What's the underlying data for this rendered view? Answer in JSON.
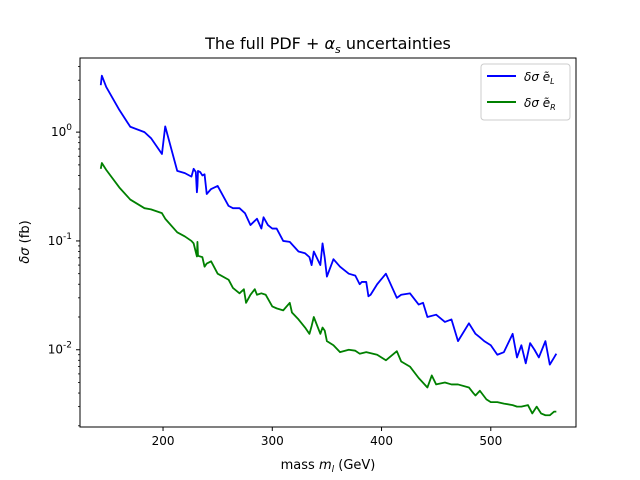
{
  "chart_data": {
    "type": "line",
    "title": "The full PDF + α_s uncertainties",
    "xlabel": "mass m_l (GeV)",
    "ylabel": "δσ (fb)",
    "xlim": [
      124,
      578
    ],
    "ylim": [
      0.00195,
      4.8
    ],
    "yscale": "log",
    "xticks": [
      200,
      300,
      400,
      500
    ],
    "yticks": [
      0.01,
      0.1,
      1
    ],
    "ytick_labels": [
      "10^-2",
      "10^-1",
      "10^0"
    ],
    "legend_position": "top-right",
    "grid": false,
    "series": [
      {
        "name": "δσ ẽ_L",
        "color": "#0000ff",
        "x": [
          143,
          144,
          148,
          160,
          170,
          183,
          189,
          199,
          202,
          213,
          220,
          226,
          228,
          230,
          231,
          231.5,
          232,
          234,
          236,
          238,
          240,
          244,
          250,
          260,
          264,
          270,
          275,
          280,
          286,
          290,
          292,
          296,
          300,
          304,
          310,
          316,
          324,
          330,
          334,
          336,
          338,
          344,
          346,
          348,
          350,
          356,
          362,
          370,
          376,
          380,
          382,
          386,
          388,
          390,
          396,
          404,
          414,
          418,
          426,
          434,
          438,
          442,
          450,
          458,
          464,
          470,
          480,
          486,
          490,
          494,
          500,
          506,
          512,
          520,
          524,
          528,
          532,
          536,
          540,
          544,
          550,
          554,
          558,
          560
        ],
        "y": [
          2.7,
          3.3,
          2.6,
          1.6,
          1.12,
          1.0,
          0.88,
          0.63,
          1.13,
          0.44,
          0.42,
          0.39,
          0.46,
          0.43,
          0.28,
          0.32,
          0.44,
          0.43,
          0.4,
          0.41,
          0.27,
          0.3,
          0.32,
          0.21,
          0.2,
          0.2,
          0.18,
          0.14,
          0.16,
          0.13,
          0.165,
          0.14,
          0.13,
          0.13,
          0.1,
          0.098,
          0.08,
          0.077,
          0.071,
          0.06,
          0.08,
          0.06,
          0.095,
          0.07,
          0.047,
          0.068,
          0.058,
          0.05,
          0.048,
          0.04,
          0.042,
          0.042,
          0.031,
          0.032,
          0.04,
          0.05,
          0.03,
          0.032,
          0.033,
          0.026,
          0.027,
          0.02,
          0.021,
          0.018,
          0.019,
          0.012,
          0.0175,
          0.014,
          0.013,
          0.012,
          0.011,
          0.009,
          0.0095,
          0.014,
          0.0085,
          0.011,
          0.0075,
          0.0115,
          0.01,
          0.0085,
          0.012,
          0.0073,
          0.0085,
          0.0092
        ]
      },
      {
        "name": "δσ ẽ_R",
        "color": "#008000",
        "x": [
          143,
          144,
          148,
          160,
          170,
          183,
          189,
          199,
          202,
          213,
          220,
          226,
          228,
          231,
          231.5,
          232,
          236,
          238,
          240,
          244,
          250,
          260,
          264,
          270,
          274,
          276,
          280,
          284,
          286,
          290,
          294,
          300,
          304,
          310,
          316,
          318,
          324,
          330,
          334,
          336,
          338,
          344,
          346,
          348,
          350,
          356,
          362,
          370,
          376,
          380,
          386,
          396,
          404,
          414,
          418,
          426,
          434,
          442,
          446,
          450,
          458,
          464,
          470,
          480,
          484,
          486,
          490,
          496,
          500,
          506,
          512,
          520,
          524,
          528,
          534,
          538,
          542,
          546,
          550,
          554,
          558,
          560
        ],
        "y": [
          0.46,
          0.52,
          0.45,
          0.31,
          0.24,
          0.2,
          0.195,
          0.18,
          0.16,
          0.12,
          0.11,
          0.1,
          0.095,
          0.072,
          0.098,
          0.073,
          0.071,
          0.058,
          0.062,
          0.065,
          0.05,
          0.044,
          0.037,
          0.033,
          0.036,
          0.027,
          0.032,
          0.036,
          0.032,
          0.033,
          0.032,
          0.025,
          0.024,
          0.023,
          0.027,
          0.022,
          0.019,
          0.016,
          0.014,
          0.0165,
          0.02,
          0.014,
          0.016,
          0.015,
          0.012,
          0.011,
          0.0095,
          0.01,
          0.0098,
          0.0092,
          0.0095,
          0.009,
          0.008,
          0.0097,
          0.0078,
          0.007,
          0.0055,
          0.0045,
          0.0058,
          0.0048,
          0.005,
          0.0048,
          0.0048,
          0.0045,
          0.004,
          0.0038,
          0.0042,
          0.0035,
          0.0033,
          0.0033,
          0.0032,
          0.0031,
          0.003,
          0.003,
          0.0031,
          0.0026,
          0.003,
          0.0026,
          0.0025,
          0.0025,
          0.0027,
          0.0027
        ]
      }
    ]
  }
}
